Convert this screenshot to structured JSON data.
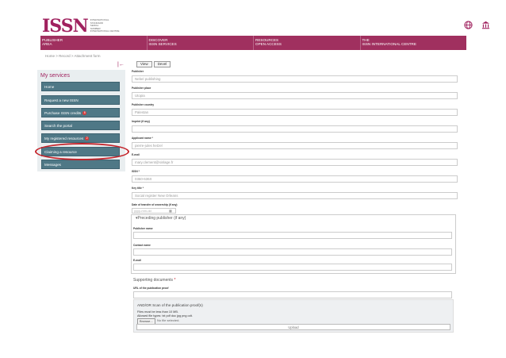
{
  "header": {
    "logo_mark": "ISSN",
    "logo_text": [
      "INTERNATIONAL",
      "STANDARD",
      "SERIAL",
      "NUMBER",
      "INTERNATIONAL CENTRE"
    ],
    "icons": [
      "globe-icon",
      "institution-icon"
    ]
  },
  "nav": [
    {
      "line1": "PUBLISHER",
      "line2": "AREA"
    },
    {
      "line1": "DISCOVER",
      "line2": "ISSN SERVICES"
    },
    {
      "line1": "RESOURCES",
      "line2": "OPEN ACCESS"
    },
    {
      "line1": "THE",
      "line2": "ISSN INTERNATIONAL CENTRE"
    }
  ],
  "breadcrumb": "Home  >  Record  >  Attachment form",
  "sidebar": {
    "title": "My services",
    "items": [
      {
        "label": "Home"
      },
      {
        "label": "Request a new ISSN"
      },
      {
        "label": "Purchase ISSN credits",
        "badge": "8"
      },
      {
        "label": "Search the portal"
      },
      {
        "label": "My registered resources",
        "badge": "2"
      },
      {
        "label": "Claiming a resource"
      },
      {
        "label": "Messages"
      }
    ]
  },
  "form": {
    "view_label": "View",
    "devel_label": "Devel",
    "fields": [
      {
        "label": "Publisher",
        "value": "Nebel publishing"
      },
      {
        "label": "Publisher place",
        "value": "Utopia"
      },
      {
        "label": "Publisher country",
        "value": "Palestan"
      },
      {
        "label": "Imprint (if any)",
        "value": ""
      },
      {
        "label": "Applicant name *",
        "value": "pierre-jules hetzel"
      },
      {
        "label": "E-mail",
        "value": "mary.clement@sinlage.fr"
      },
      {
        "label": "ISSN *",
        "value": "0360-636X"
      },
      {
        "label": "Key title *",
        "value": "Social register New Orleans"
      }
    ],
    "date_label": "Date of transfer of ownership (if any)",
    "date_placeholder": "yyyy-mm-dd",
    "preceding": {
      "legend": "Preceding publisher (if any)",
      "fields": [
        {
          "label": "Publisher name"
        },
        {
          "label": "Contact name"
        },
        {
          "label": "E-mail"
        }
      ]
    },
    "documents": {
      "title": "Supporting documents",
      "url_label": "URL of the publication proof",
      "scan_title": "AND/OR Scan of the publication proof(s)",
      "size_note": "Files must be less than 10 MB.",
      "types_note": "Allowed file types: txt pdf doc jpg png odt.",
      "browse_label": "Browse...",
      "no_file": "No file selected.",
      "upload_label": "Upload"
    }
  }
}
